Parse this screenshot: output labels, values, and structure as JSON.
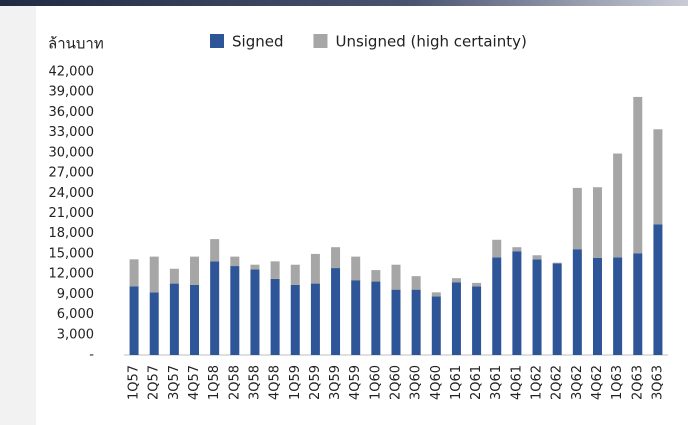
{
  "chart_data": {
    "type": "stacked_bar",
    "y_label": "ล้านบาท",
    "categories": [
      "1Q57",
      "2Q57",
      "3Q57",
      "4Q57",
      "1Q58",
      "2Q58",
      "3Q58",
      "4Q58",
      "1Q59",
      "2Q59",
      "3Q59",
      "4Q59",
      "1Q60",
      "2Q60",
      "3Q60",
      "4Q60",
      "1Q61",
      "2Q61",
      "3Q61",
      "4Q61",
      "1Q62",
      "2Q62",
      "3Q62",
      "4Q62",
      "1Q63",
      "2Q63",
      "3Q63"
    ],
    "series": [
      {
        "name": "Signed",
        "color": "#2e5597",
        "values": [
          10200,
          9300,
          10600,
          10400,
          13900,
          13200,
          12700,
          11300,
          10400,
          10600,
          12900,
          11100,
          10900,
          9700,
          9700,
          8700,
          10800,
          10200,
          14500,
          15400,
          14200,
          13600,
          15700,
          14400,
          14500,
          15100,
          19400
        ]
      },
      {
        "name": "Unsigned (high certainty)",
        "color": "#a6a6a6",
        "values": [
          4000,
          5300,
          2200,
          4200,
          3300,
          1400,
          700,
          2600,
          3000,
          4400,
          3100,
          3500,
          1700,
          3700,
          2000,
          600,
          600,
          500,
          2600,
          600,
          600,
          100,
          9100,
          10500,
          15400,
          23200,
          14100
        ]
      }
    ],
    "ylim": [
      0,
      42000
    ],
    "yticks": [
      {
        "value": 0,
        "label": "-"
      },
      {
        "value": 3000,
        "label": "3,000"
      },
      {
        "value": 6000,
        "label": "6,000"
      },
      {
        "value": 9000,
        "label": "9,000"
      },
      {
        "value": 12000,
        "label": "12,000"
      },
      {
        "value": 15000,
        "label": "15,000"
      },
      {
        "value": 18000,
        "label": "18,000"
      },
      {
        "value": 21000,
        "label": "21,000"
      },
      {
        "value": 24000,
        "label": "24,000"
      },
      {
        "value": 27000,
        "label": "27,000"
      },
      {
        "value": 30000,
        "label": "30,000"
      },
      {
        "value": 33000,
        "label": "33,000"
      },
      {
        "value": 36000,
        "label": "36,000"
      },
      {
        "value": 39000,
        "label": "39,000"
      },
      {
        "value": 42000,
        "label": "42,000"
      }
    ]
  }
}
